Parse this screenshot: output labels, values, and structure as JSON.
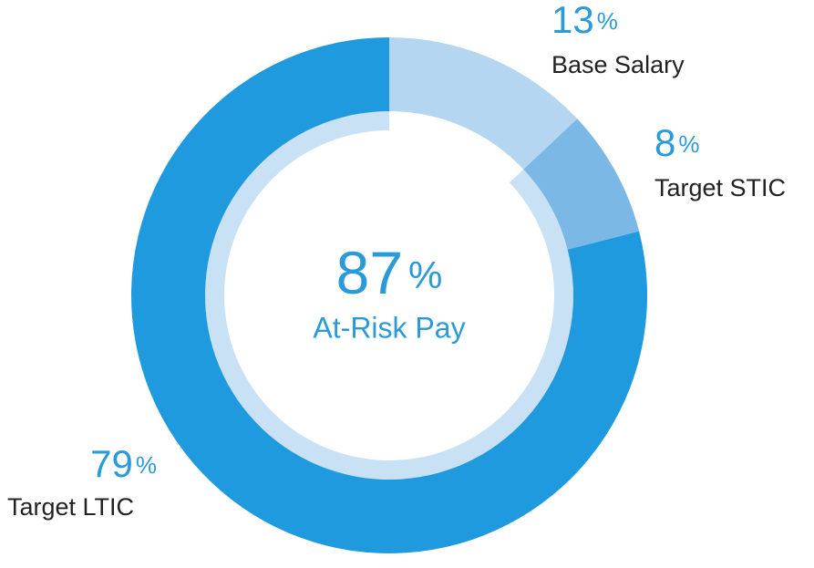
{
  "chart_data": {
    "type": "donut",
    "categories": [
      "Base Salary",
      "Target STIC",
      "Target LTIC"
    ],
    "values": [
      13,
      8,
      79
    ],
    "colors": [
      "#b5d6f0",
      "#7bb8e6",
      "#1f9ade"
    ],
    "unit": "%",
    "center_value": 87,
    "center_label": "At-Risk Pay",
    "center_ring_color": "#c9e1f5"
  }
}
